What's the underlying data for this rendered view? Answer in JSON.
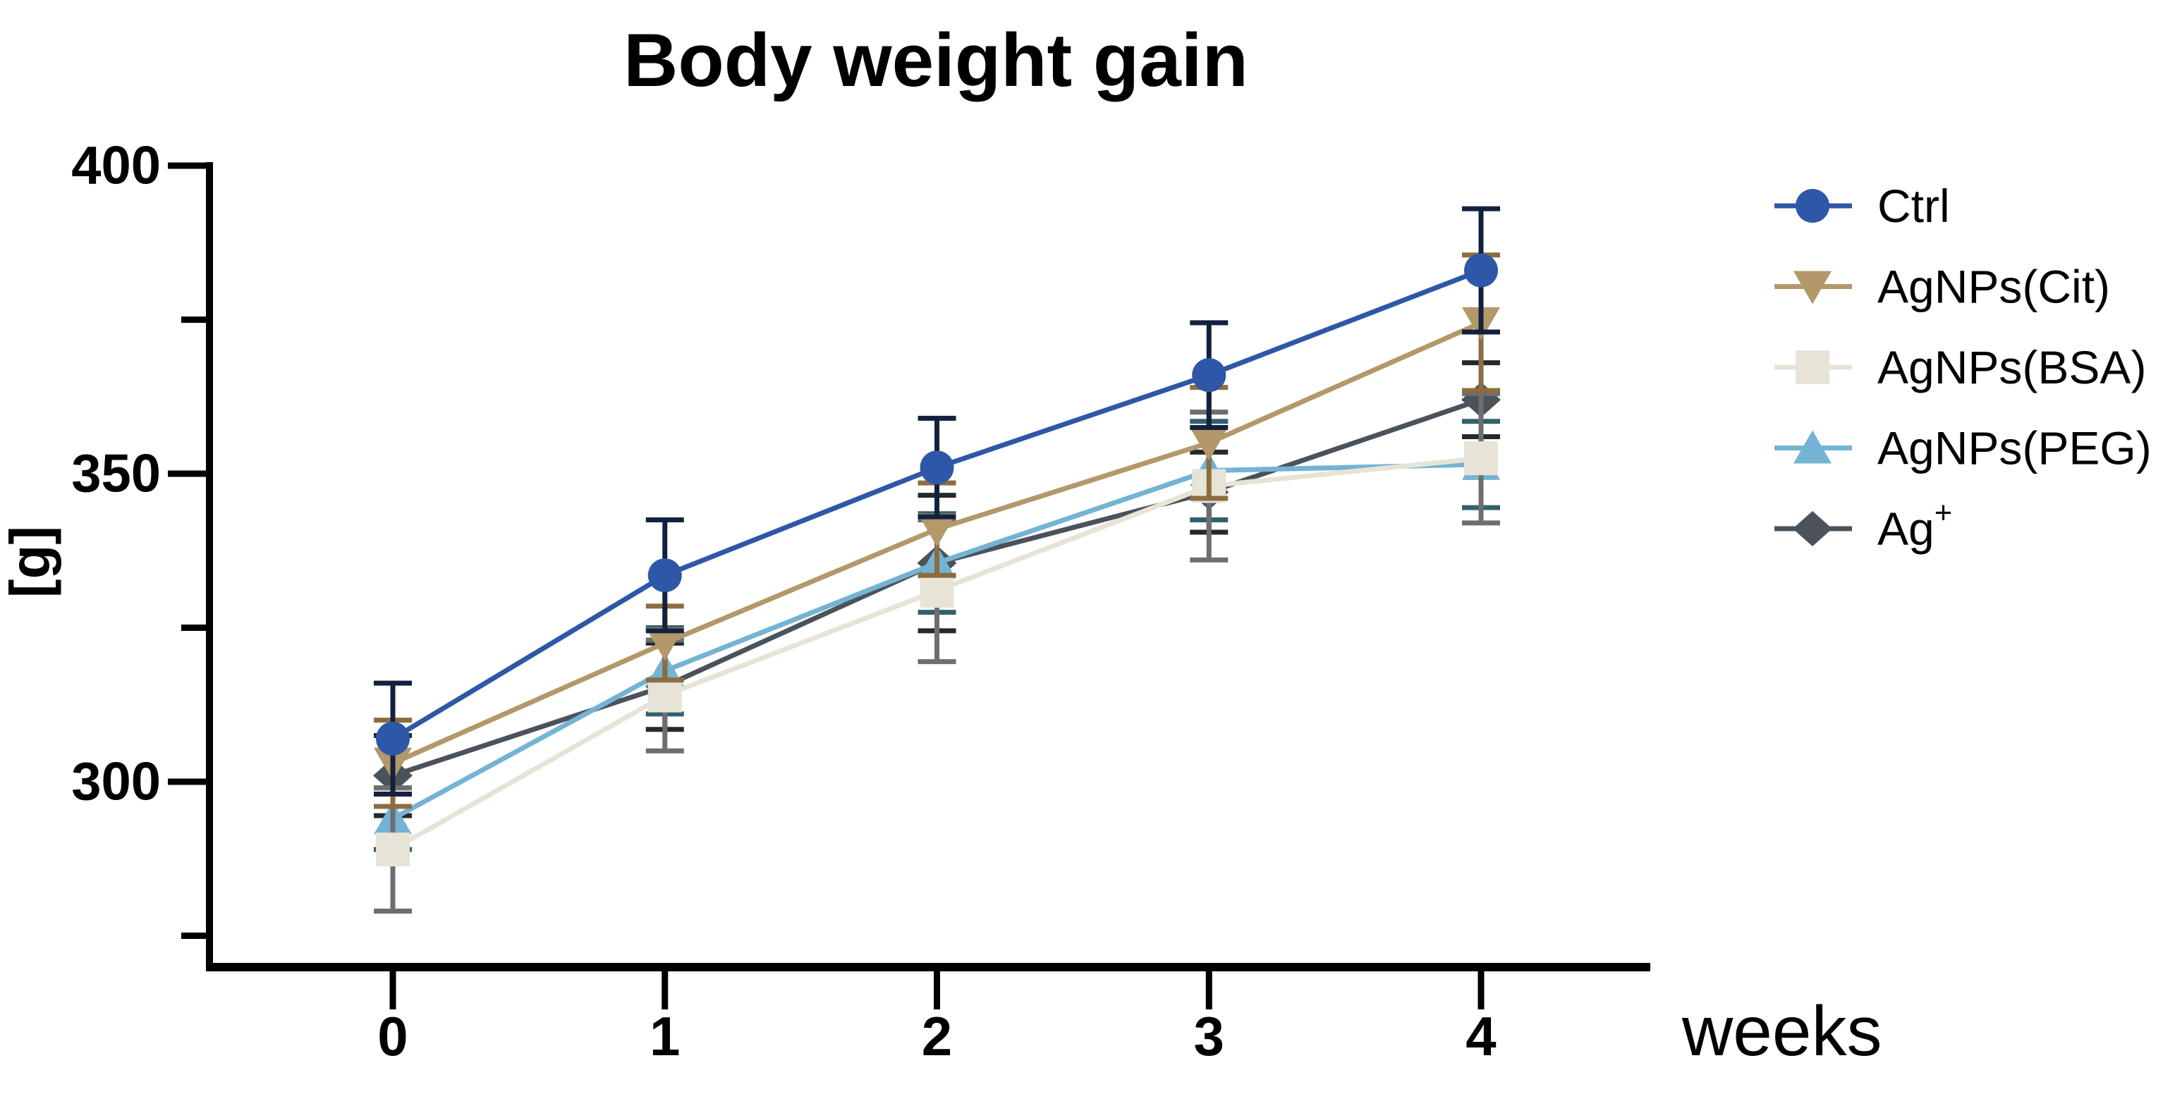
{
  "figure": {
    "background": "#ffffff",
    "axis_color": "#000000"
  },
  "chart_data": {
    "type": "line",
    "title": "Body weight gain",
    "xlabel": "weeks",
    "ylabel": "[g]",
    "x": [
      0,
      1,
      2,
      3,
      4
    ],
    "x_tick_labels": [
      "0",
      "1",
      "2",
      "3",
      "4"
    ],
    "y_ticks": [
      400,
      350,
      300
    ],
    "y_tick_labels": [
      "400",
      "350",
      "300"
    ],
    "y_minor_ticks": [
      375,
      325,
      275
    ],
    "ylim": [
      270,
      400
    ],
    "grid": false,
    "legend_position": "right",
    "error_bars": "sd, symmetric, capped",
    "series": [
      {
        "name": "Ctrl",
        "sup": "",
        "marker": "circle",
        "color": "#2E57A8",
        "error_color": "#13213E",
        "values": [
          307,
          333.5,
          351,
          366,
          383
        ],
        "sd": [
          9,
          9,
          8,
          8.5,
          10
        ]
      },
      {
        "name": "AgNPs(Cit)",
        "sup": "",
        "marker": "triangle-down",
        "color": "#B3986A",
        "error_color": "#8C6D3F",
        "values": [
          303,
          322.5,
          341,
          355,
          374.5
        ],
        "sd": [
          7,
          6,
          7.5,
          9,
          11
        ]
      },
      {
        "name": "AgNPs(BSA)",
        "sup": "",
        "marker": "square",
        "color": "#E7E3D6",
        "error_color": "#6E6E6E",
        "values": [
          289,
          314,
          331,
          348,
          352.5
        ],
        "sd": [
          10,
          9,
          11.5,
          12,
          10.5
        ]
      },
      {
        "name": "AgNPs(PEG)",
        "sup": "",
        "marker": "triangle-up",
        "color": "#74B3D4",
        "error_color": "#32606C",
        "values": [
          294,
          318,
          335.5,
          350.5,
          351.5
        ],
        "sd": [
          5,
          7,
          8,
          8,
          7
        ]
      },
      {
        "name": "Ag",
        "sup": "+",
        "marker": "diamond",
        "color": "#4A525A",
        "error_color": "#26292C",
        "values": [
          301,
          315.5,
          335.5,
          347,
          362
        ],
        "sd": [
          6.5,
          7,
          11,
          6.5,
          6
        ]
      }
    ]
  }
}
